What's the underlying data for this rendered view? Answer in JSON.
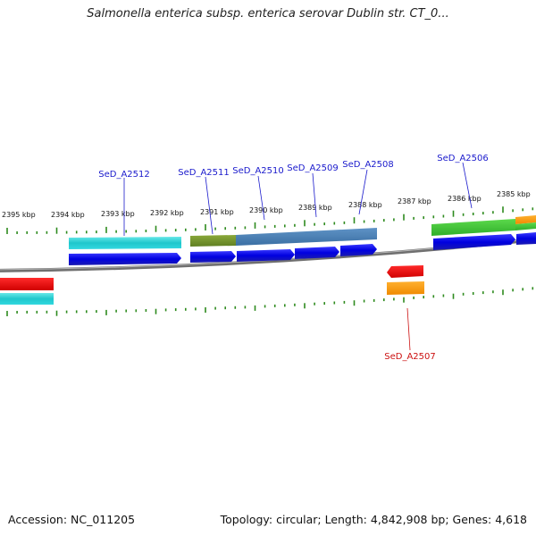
{
  "title": "Salmonella enterica subsp. enterica serovar Dublin str. CT_0...",
  "footer": {
    "accession": "Accession: NC_011205",
    "topology": "Topology: circular; Length: 4,842,908 bp; Genes: 4,618"
  },
  "colors": {
    "backbone": "#777777",
    "tick": "#2e8b1e",
    "label_blue": "#1a1acc",
    "label_red": "#cc1111"
  },
  "scale_ticks": [
    "2395 kbp",
    "2394 kbp",
    "2393 kbp",
    "2392 kbp",
    "2391 kbp",
    "2390 kbp",
    "2389 kbp",
    "2388 kbp",
    "2387 kbp",
    "2386 kbp",
    "2385 kbp"
  ],
  "gene_labels": [
    {
      "text": "SeD_A2512",
      "color": "#1a1acc"
    },
    {
      "text": "SeD_A2511",
      "color": "#1a1acc"
    },
    {
      "text": "SeD_A2510",
      "color": "#1a1acc"
    },
    {
      "text": "SeD_A2509",
      "color": "#1a1acc"
    },
    {
      "text": "SeD_A2508",
      "color": "#1a1acc"
    },
    {
      "text": "SeD_A2506",
      "color": "#1a1acc"
    },
    {
      "text": "SeD_A2507",
      "color": "#cc1111"
    }
  ]
}
